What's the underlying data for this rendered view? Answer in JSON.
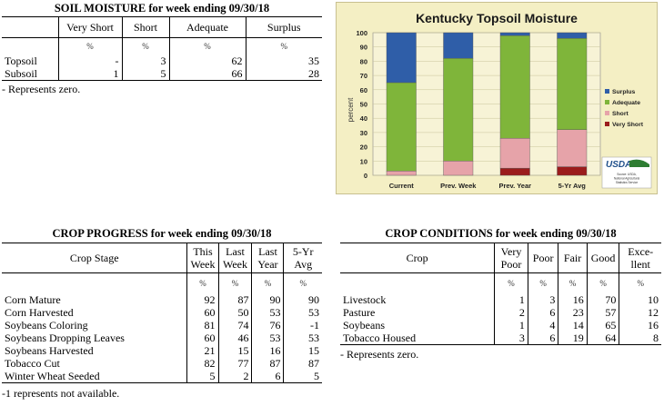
{
  "soil_moisture": {
    "title": "SOIL MOISTURE for week ending 09/30/18",
    "columns": [
      "Very Short",
      "Short",
      "Adequate",
      "Surplus"
    ],
    "unit": "%",
    "rows": [
      {
        "label": "Topsoil",
        "values": [
          "-",
          "3",
          "62",
          "35"
        ]
      },
      {
        "label": "Subsoil",
        "values": [
          "1",
          "5",
          "66",
          "28"
        ]
      }
    ],
    "note": "- Represents zero."
  },
  "crop_progress": {
    "title": "CROP PROGRESS for week ending 09/30/18",
    "stage_header": "Crop Stage",
    "columns": [
      {
        "l1": "This",
        "l2": "Week"
      },
      {
        "l1": "Last",
        "l2": "Week"
      },
      {
        "l1": "Last",
        "l2": "Year"
      },
      {
        "l1": "5-Yr",
        "l2": "Avg"
      }
    ],
    "unit": "%",
    "rows": [
      {
        "label": "Corn Mature",
        "values": [
          "92",
          "87",
          "90",
          "90"
        ]
      },
      {
        "label": "Corn Harvested",
        "values": [
          "60",
          "50",
          "53",
          "53"
        ]
      },
      {
        "label": "Soybeans Coloring",
        "values": [
          "81",
          "74",
          "76",
          "-1"
        ]
      },
      {
        "label": "Soybeans Dropping Leaves",
        "values": [
          "60",
          "46",
          "53",
          "53"
        ]
      },
      {
        "label": "Soybeans Harvested",
        "values": [
          "21",
          "15",
          "16",
          "15"
        ]
      },
      {
        "label": "Tobacco Cut",
        "values": [
          "82",
          "77",
          "87",
          "87"
        ]
      },
      {
        "label": "Winter Wheat Seeded",
        "values": [
          "5",
          "2",
          "6",
          "5"
        ]
      }
    ],
    "note": "-1 represents not available."
  },
  "crop_conditions": {
    "title": "CROP CONDITIONS for week ending 09/30/18",
    "crop_header": "Crop",
    "columns": [
      {
        "l1": "Very",
        "l2": "Poor"
      },
      {
        "l1": "Poor",
        "l2": ""
      },
      {
        "l1": "Fair",
        "l2": ""
      },
      {
        "l1": "Good",
        "l2": ""
      },
      {
        "l1": "Exce-",
        "l2": "llent"
      }
    ],
    "unit": "%",
    "rows": [
      {
        "label": "Livestock",
        "values": [
          "1",
          "3",
          "16",
          "70",
          "10"
        ]
      },
      {
        "label": "Pasture",
        "values": [
          "2",
          "6",
          "23",
          "57",
          "12"
        ]
      },
      {
        "label": "Soybeans",
        "values": [
          "1",
          "4",
          "14",
          "65",
          "16"
        ]
      },
      {
        "label": "Tobacco Housed",
        "values": [
          "3",
          "6",
          "19",
          "64",
          "8"
        ]
      }
    ],
    "note": "- Represents zero."
  },
  "chart_data": {
    "type": "bar",
    "stacked": true,
    "title": "Kentucky Topsoil Moisture",
    "ylabel": "percent",
    "xlabel": "",
    "ylim": [
      0,
      100
    ],
    "yticks": [
      "0",
      "10",
      "20",
      "30",
      "40",
      "50",
      "60",
      "70",
      "80",
      "90",
      "100"
    ],
    "categories": [
      "Current",
      "Prev. Week",
      "Prev. Year",
      "5-Yr Avg"
    ],
    "series": [
      {
        "name": "Very Short",
        "color": "#9b1c1c",
        "values": [
          0,
          0,
          5,
          6
        ]
      },
      {
        "name": "Short",
        "color": "#e6a3a9",
        "values": [
          3,
          10,
          21,
          26
        ]
      },
      {
        "name": "Adequate",
        "color": "#7fb53a",
        "values": [
          62,
          72,
          72,
          64
        ]
      },
      {
        "name": "Surplus",
        "color": "#2f5ea8",
        "values": [
          35,
          18,
          2,
          4
        ]
      }
    ],
    "legend_order": [
      "Surplus",
      "Adequate",
      "Short",
      "Very Short"
    ],
    "legend_position": "right",
    "logo": {
      "text": "USDA",
      "caption": "Source: USDA, National Agricultural Statistics Service"
    }
  }
}
